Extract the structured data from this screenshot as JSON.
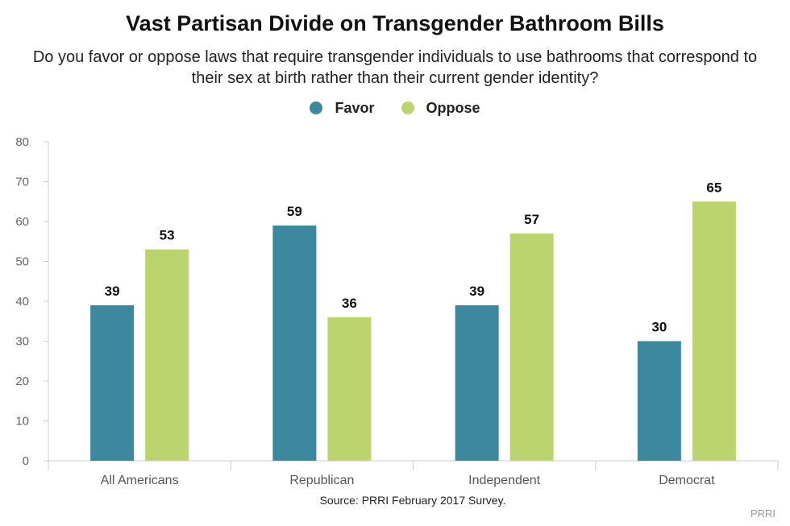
{
  "chart_data": {
    "type": "bar",
    "title": "Vast Partisan Divide on Transgender Bathroom Bills",
    "subtitle": "Do you favor or oppose laws that require transgender individuals to use bathrooms that correspond to their sex at birth rather than their current gender identity?",
    "categories": [
      "All Americans",
      "Republican",
      "Independent",
      "Democrat"
    ],
    "series": [
      {
        "name": "Favor",
        "color": "#3b889f",
        "values": [
          39,
          59,
          39,
          30
        ]
      },
      {
        "name": "Oppose",
        "color": "#bcd46e",
        "values": [
          53,
          36,
          57,
          65
        ]
      }
    ],
    "ylim": [
      0,
      80
    ],
    "yticks": [
      0,
      10,
      20,
      30,
      40,
      50,
      60,
      70,
      80
    ],
    "xlabel": "",
    "ylabel": "",
    "legend": "top-center",
    "grid": false
  },
  "source": "Source: PRRI February 2017 Survey.",
  "brand": "PRRI"
}
